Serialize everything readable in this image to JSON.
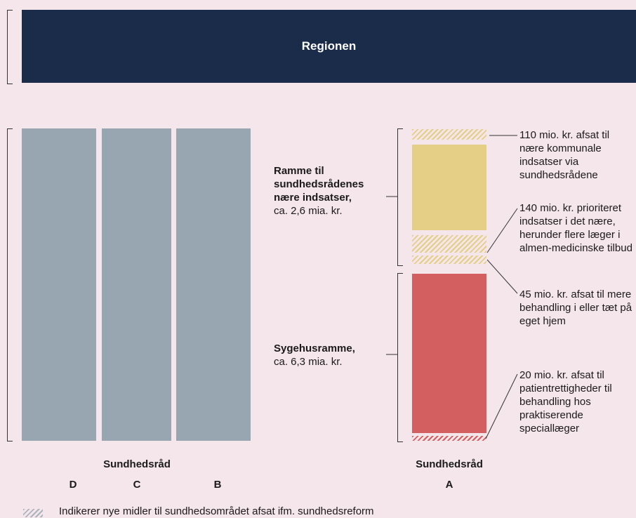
{
  "region": {
    "title": "Regionen"
  },
  "left_group": {
    "title": "Sundhedsråd",
    "columns": [
      "D",
      "C",
      "B"
    ]
  },
  "right_group": {
    "title": "Sundhedsråd",
    "column": "A"
  },
  "frame_labels": {
    "near": {
      "bold": "Ramme til sundhedsrådenes nære indsatser,",
      "value": "ca. 2,6 mia. kr."
    },
    "hospital": {
      "bold": "Sygehusramme,",
      "value": "ca. 6,3 mia. kr."
    }
  },
  "notes": [
    "110 mio. kr. afsat til nære kommunale indsatser via sundhedsrådene",
    "140 mio. kr. prioriteret indsatser i det nære, herunder flere læger i almen-medicinske tilbud",
    "45 mio. kr. afsat til mere behandling i eller tæt på eget hjem",
    "20 mio. kr. afsat til patientrettigheder til behandling hos praktiserende speciallæger"
  ],
  "legend": {
    "text": "Indikerer nye midler til sundhedsområdet afsat ifm. sundhedsreform"
  },
  "colors": {
    "banner": "#1b2c4a",
    "background": "#f5e6ec",
    "columns": "#97a6b0",
    "near_frame": "#e5cf86",
    "hospital_frame": "#d45f60"
  }
}
